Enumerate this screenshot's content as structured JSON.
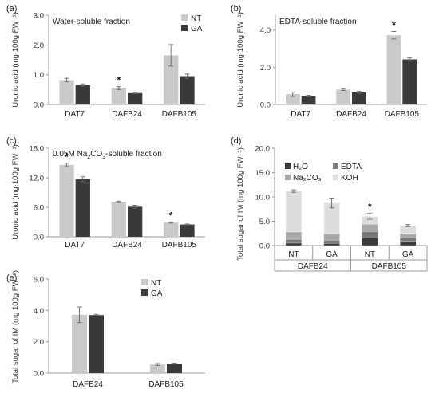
{
  "colors": {
    "NT": "#c9c9c9",
    "GA": "#3a3a3a",
    "H2O": "#3a3a3a",
    "EDTA": "#7a7a7a",
    "Na2CO3": "#a8a8a8",
    "KOH": "#dcdcdc"
  },
  "chart_data": [
    {
      "id": "a",
      "panel_label": "(a)",
      "type": "bar",
      "subtitle": "Water-soluble fraction",
      "ylabel": "Uronic acid (mg·100g FW⁻¹)",
      "yticks": [
        "0.0",
        "1.0",
        "2.0",
        "3.0"
      ],
      "ylim": [
        0,
        3.0
      ],
      "categories": [
        "DAT7",
        "DAFB24",
        "DAFB105"
      ],
      "legend": [
        "NT",
        "GA"
      ],
      "series": [
        {
          "name": "NT",
          "values": [
            0.82,
            0.55,
            1.65
          ],
          "errors": [
            0.06,
            0.05,
            0.36
          ]
        },
        {
          "name": "GA",
          "values": [
            0.65,
            0.38,
            0.95
          ],
          "errors": [
            0.04,
            0.02,
            0.07
          ]
        }
      ],
      "star_marks": [
        1
      ]
    },
    {
      "id": "b",
      "panel_label": "(b)",
      "type": "bar",
      "subtitle": "EDTA-soluble fraction",
      "ylabel": "Uronic acid (mg·100g FW⁻¹)",
      "yticks": [
        "0.0",
        "2.0",
        "4.0"
      ],
      "ylim": [
        0,
        4.8
      ],
      "categories": [
        "DAT7",
        "DAFB24",
        "DAFB105"
      ],
      "series": [
        {
          "name": "NT",
          "values": [
            0.55,
            0.8,
            3.72
          ],
          "errors": [
            0.12,
            0.05,
            0.2
          ]
        },
        {
          "name": "GA",
          "values": [
            0.45,
            0.65,
            2.42
          ],
          "errors": [
            0.04,
            0.05,
            0.08
          ]
        }
      ],
      "star_marks": [
        2
      ]
    },
    {
      "id": "c",
      "panel_label": "(c)",
      "type": "bar",
      "subtitle_main": "0.05M Na",
      "subtitle_sub": "2",
      "subtitle_rest": "CO",
      "subtitle_sub2": "3",
      "subtitle_end": "-soluble fraction",
      "ylabel": "Uronic acid (mg·100g FW⁻¹)",
      "yticks": [
        "0.0",
        "6.0",
        "12.0",
        "18.0"
      ],
      "ylim": [
        0,
        18.0
      ],
      "categories": [
        "DAT7",
        "DAFB24",
        "DAFB105"
      ],
      "series": [
        {
          "name": "NT",
          "values": [
            14.6,
            7.1,
            2.9
          ],
          "errors": [
            0.35,
            0.15,
            0.12
          ]
        },
        {
          "name": "GA",
          "values": [
            11.7,
            6.1,
            2.5
          ],
          "errors": [
            0.5,
            0.3,
            0.1
          ]
        }
      ],
      "star_marks": [
        0,
        2
      ]
    },
    {
      "id": "d",
      "panel_label": "(d)",
      "type": "bar",
      "stacked": true,
      "ylabel": "Total sugar of IM (mg 100g FW⁻¹)",
      "yticks": [
        "0.0",
        "5.0",
        "10.0",
        "15.0",
        "20.0"
      ],
      "ylim": [
        0,
        20.0
      ],
      "categories": [
        "NT",
        "GA",
        "NT",
        "GA"
      ],
      "groups": [
        "DAFB24",
        "DAFB105"
      ],
      "legend": [
        "H₂O",
        "EDTA",
        "Na₂CO₃",
        "KOH"
      ],
      "series": [
        {
          "name": "H2O",
          "values": [
            0.5,
            0.45,
            1.6,
            0.9
          ]
        },
        {
          "name": "EDTA",
          "values": [
            0.8,
            0.65,
            1.3,
            0.7
          ]
        },
        {
          "name": "Na2CO3",
          "values": [
            1.5,
            1.3,
            1.5,
            0.9
          ]
        },
        {
          "name": "KOH",
          "values": [
            8.4,
            6.35,
            1.6,
            1.6
          ]
        }
      ],
      "totals_err": [
        0.25,
        1.0,
        0.6,
        0.2
      ],
      "star_marks": [
        2
      ]
    },
    {
      "id": "e",
      "panel_label": "(e)",
      "type": "bar",
      "ylabel": "Total sugar of IM (mg 100g FW⁻¹)",
      "yticks": [
        "0.0",
        "2.0",
        "4.0",
        "6.0"
      ],
      "ylim": [
        0,
        6.0
      ],
      "categories": [
        "DAFB24",
        "DAFB105"
      ],
      "legend": [
        "NT",
        "GA"
      ],
      "series": [
        {
          "name": "NT",
          "values": [
            3.72,
            0.55
          ],
          "errors": [
            0.5,
            0.06
          ]
        },
        {
          "name": "GA",
          "values": [
            3.7,
            0.6
          ],
          "errors": [
            0.05,
            0.03
          ]
        }
      ]
    }
  ],
  "star": "*"
}
